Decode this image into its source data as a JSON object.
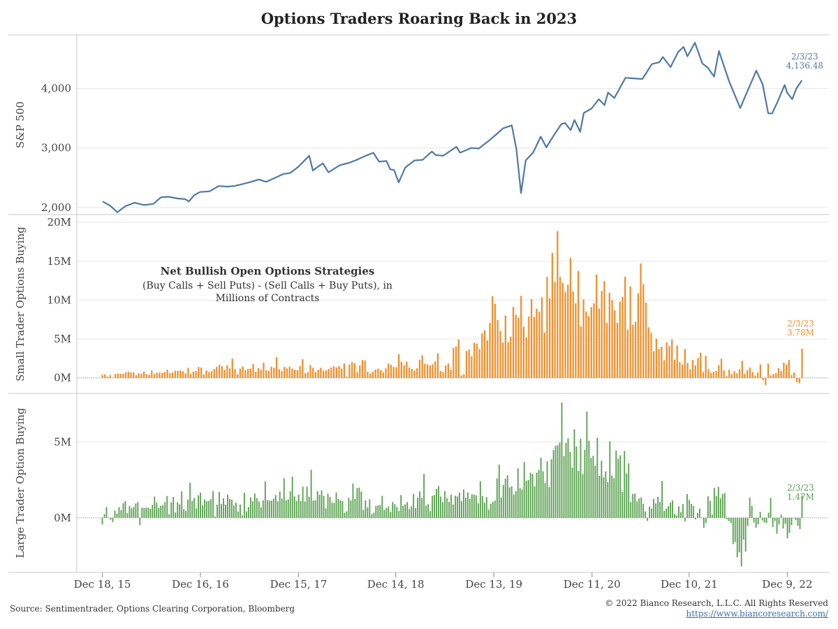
{
  "title": "Options Traders Roaring Back in 2023",
  "footer": {
    "source": "Source: Sentimentrader, Options Clearing Corporation, Bloomberg",
    "copyright": "© 2022 Bianco Research, L.L.C. All Rights Reserved",
    "url": "https://www.biancoresearch.com/"
  },
  "colors": {
    "sp500": "#4e79a7",
    "small": "#f28e2b",
    "large": "#59a14f",
    "grid": "#e6e6e6",
    "frame": "#c8c8c8"
  },
  "chart_data": [
    {
      "type": "line",
      "ylabel": "S&P 500",
      "yticks": [
        2000,
        3000,
        4000
      ],
      "yticklabels": [
        "2,000",
        "3,000",
        "4,000"
      ],
      "ylim": [
        1880,
        4900
      ],
      "end_annotation": {
        "date": "2/3/23",
        "value": "4,136.48"
      },
      "series": [
        {
          "x": [
            "2015-12-18",
            "2016-01-15",
            "2016-02-12",
            "2016-03-11",
            "2016-04-15",
            "2016-05-20",
            "2016-06-24",
            "2016-07-22",
            "2016-08-19",
            "2016-09-23",
            "2016-10-21",
            "2016-11-04",
            "2016-11-25",
            "2016-12-16",
            "2017-01-20",
            "2017-02-24",
            "2017-03-24",
            "2017-04-21",
            "2017-05-19",
            "2017-06-23",
            "2017-07-21",
            "2017-08-18",
            "2017-09-22",
            "2017-10-20",
            "2017-11-17",
            "2017-12-15",
            "2018-01-26",
            "2018-02-09",
            "2018-03-02",
            "2018-03-16",
            "2018-04-06",
            "2018-05-18",
            "2018-06-22",
            "2018-07-20",
            "2018-08-24",
            "2018-09-21",
            "2018-10-12",
            "2018-11-09",
            "2018-11-23",
            "2018-12-07",
            "2018-12-24",
            "2019-01-18",
            "2019-02-22",
            "2019-03-22",
            "2019-04-26",
            "2019-05-10",
            "2019-06-07",
            "2019-07-26",
            "2019-08-09",
            "2019-09-20",
            "2019-10-18",
            "2019-11-22",
            "2019-12-20",
            "2020-01-17",
            "2020-02-19",
            "2020-03-06",
            "2020-03-23",
            "2020-04-10",
            "2020-05-08",
            "2020-06-05",
            "2020-06-26",
            "2020-07-24",
            "2020-08-21",
            "2020-09-04",
            "2020-09-25",
            "2020-10-09",
            "2020-10-30",
            "2020-11-13",
            "2020-12-11",
            "2021-01-08",
            "2021-01-29",
            "2021-02-12",
            "2021-03-05",
            "2021-04-16",
            "2021-05-14",
            "2021-06-18",
            "2021-07-23",
            "2021-08-20",
            "2021-09-03",
            "2021-10-01",
            "2021-10-29",
            "2021-11-19",
            "2021-12-03",
            "2021-12-31",
            "2022-01-28",
            "2022-02-18",
            "2022-03-11",
            "2022-03-29",
            "2022-05-06",
            "2022-06-17",
            "2022-07-08",
            "2022-08-16",
            "2022-09-09",
            "2022-09-30",
            "2022-10-14",
            "2022-11-04",
            "2022-11-30",
            "2022-12-09",
            "2022-12-28",
            "2023-01-13",
            "2023-02-03"
          ],
          "y": [
            2100,
            2030,
            1920,
            2020,
            2080,
            2040,
            2060,
            2170,
            2180,
            2150,
            2140,
            2100,
            2210,
            2260,
            2270,
            2360,
            2350,
            2360,
            2390,
            2430,
            2470,
            2430,
            2500,
            2560,
            2580,
            2680,
            2870,
            2620,
            2700,
            2740,
            2590,
            2710,
            2750,
            2800,
            2870,
            2920,
            2770,
            2780,
            2640,
            2630,
            2420,
            2670,
            2790,
            2800,
            2940,
            2880,
            2870,
            3020,
            2920,
            3000,
            2990,
            3110,
            3220,
            3330,
            3380,
            2970,
            2240,
            2790,
            2930,
            3190,
            3010,
            3220,
            3400,
            3420,
            3300,
            3470,
            3270,
            3590,
            3660,
            3820,
            3720,
            3930,
            3840,
            4180,
            4170,
            4160,
            4410,
            4440,
            4530,
            4360,
            4610,
            4700,
            4540,
            4770,
            4420,
            4350,
            4200,
            4630,
            4120,
            3670,
            3900,
            4300,
            4070,
            3580,
            3580,
            3780,
            4060,
            3930,
            3820,
            4000,
            4136
          ]
        }
      ]
    },
    {
      "type": "bar",
      "ylabel": "Small Trader Options Buying",
      "yticks": [
        0,
        5,
        10,
        15,
        20
      ],
      "yticklabels": [
        "0M",
        "5M",
        "10M",
        "15M",
        "20M"
      ],
      "ylim": [
        -2,
        21
      ],
      "units": "millions of contracts",
      "annotation": {
        "title": "Net Bullish Open Options Strategies",
        "line1": "(Buy Calls + Sell Puts) - (Sell Calls + Buy Puts), in",
        "line2": "Millions of Contracts"
      },
      "end_annotation": {
        "date": "2/3/23",
        "value": "3.78M"
      },
      "shape": [
        [
          2015.96,
          0.3
        ],
        [
          2016.5,
          0.5
        ],
        [
          2017.0,
          0.7
        ],
        [
          2017.5,
          0.9
        ],
        [
          2018.0,
          1.1
        ],
        [
          2018.5,
          1.0
        ],
        [
          2019.0,
          1.4
        ],
        [
          2019.5,
          1.6
        ],
        [
          2019.8,
          3.5
        ],
        [
          2019.95,
          0.3
        ],
        [
          2020.0,
          3.5
        ],
        [
          2020.5,
          7.0
        ],
        [
          2020.9,
          10.5
        ],
        [
          2021.1,
          12.0
        ],
        [
          2021.5,
          9.5
        ],
        [
          2021.9,
          10.0
        ],
        [
          2022.0,
          5.0
        ],
        [
          2022.5,
          1.5
        ],
        [
          2023.1,
          0.5
        ]
      ],
      "values": [
        0.38,
        0.47,
        0.17,
        0.38,
        0.04,
        0.5,
        0.57,
        0.52,
        0.55,
        0.71,
        0.81,
        0.71,
        0.72,
        0.36,
        0.62,
        0.54,
        0.8,
        0.47,
        0.41,
        0.94,
        0.48,
        0.67,
        0.69,
        0.65,
        0.77,
        1.07,
        0.59,
        0.72,
        0.92,
        0.91,
        0.96,
        0.86,
        0.59,
        1.29,
        0.5,
        0.79,
        0.88,
        1.41,
        1.33,
        0.46,
        0.97,
        0.74,
        0.87,
        1.14,
        1.43,
        1.69,
        1.51,
        1.02,
        1.6,
        1.22,
        2.49,
        1.14,
        0.48,
        1.2,
        1.47,
        0.99,
        1.17,
        1.19,
        1.78,
        0.78,
        1.26,
        1.05,
        1.94,
        1.0,
        0.88,
        1.45,
        1.29,
        2.67,
        1.12,
        0.88,
        1.4,
        1.22,
        1.44,
        1.21,
        1.04,
        1.01,
        1.52,
        2.41,
        0.61,
        0.75,
        1.66,
        1.31,
        0.76,
        1.05,
        1.3,
        0.93,
        0.96,
        1.15,
        1.34,
        1.49,
        1.36,
        1.54,
        1.21,
        1.86,
        0.17,
        1.73,
        2.03,
        1.89,
        0.76,
        1.61,
        2.3,
        2.22,
        0.8,
        0.56,
        0.81,
        1.07,
        1.2,
        1.02,
        0.73,
        1.23,
        1.85,
        1.69,
        1.39,
        1.38,
        3.05,
        2.07,
        1.61,
        2.11,
        1.34,
        1.17,
        0.95,
        1.25,
        2.34,
        2.91,
        1.82,
        1.73,
        1.59,
        1.76,
        2.15,
        3.15,
        0.89,
        0.76,
        1.6,
        1.85,
        1.05,
        3.87,
        4.03,
        4.93,
        0.32,
        0.46,
        3.46,
        3.63,
        2.79,
        4.53,
        4.42,
        3.73,
        5.71,
        6.12,
        4.85,
        7.09,
        10.5,
        9.54,
        7.46,
        6.05,
        4.55,
        8.03,
        4.58,
        5.3,
        9.14,
        8.11,
        7.75,
        10.55,
        6.58,
        5.22,
        7.91,
        10.12,
        7.85,
        8.89,
        8.52,
        10.37,
        5.84,
        12.99,
        10.23,
        16.08,
        12.32,
        18.89,
        13.0,
        12.24,
        11.08,
        11.99,
        15.42,
        11.11,
        9.59,
        13.75,
        6.64,
        10.1,
        8.54,
        7.94,
        9.11,
        9.58,
        13.31,
        8.91,
        11.18,
        12.45,
        7.06,
        10.95,
        9.98,
        8.7,
        7.08,
        9.8,
        10.42,
        13.02,
        6.21,
        11.76,
        6.81,
        7.21,
        10.86,
        14.72,
        12.06,
        9.68,
        6.5,
        5.79,
        3.44,
        5.04,
        3.73,
        4.01,
        2.28,
        4.57,
        4.1,
        4.94,
        2.33,
        4.15,
        2.02,
        1.71,
        3.72,
        1.93,
        1.1,
        2.32,
        1.59,
        2.56,
        3.23,
        0.75,
        2.84,
        1.12,
        0.66,
        0.78,
        0.9,
        1.64,
        2.47,
        0.98,
        0.21,
        1.05,
        0.51,
        0.87,
        0.59,
        1.12,
        2.19,
        0.52,
        0.99,
        1.34,
        0.76,
        0.31,
        0.68,
        1.73,
        -0.3,
        -0.91,
        1.84,
        0.32,
        0.51,
        0.63,
        1.25,
        0.9,
        1.95,
        1.74,
        2.31,
        0.38,
        0.71,
        -0.55,
        -0.7,
        3.78
      ]
    },
    {
      "type": "bar",
      "ylabel": "Large Trader Option Buying",
      "yticks": [
        0,
        5
      ],
      "yticklabels": [
        "0M",
        "5M"
      ],
      "ylim": [
        -3.6,
        8.2
      ],
      "units": "millions of contracts",
      "end_annotation": {
        "date": "2/3/23",
        "value": "1.47M"
      },
      "shape": [
        [
          2015.96,
          -0.3
        ],
        [
          2016.2,
          0.5
        ],
        [
          2016.5,
          0.8
        ],
        [
          2017.0,
          1.1
        ],
        [
          2017.5,
          1.5
        ],
        [
          2017.8,
          1.8
        ],
        [
          2018.0,
          1.3
        ],
        [
          2018.5,
          0.2
        ],
        [
          2018.7,
          1.0
        ],
        [
          2019.0,
          0.5
        ],
        [
          2019.5,
          1.0
        ],
        [
          2019.9,
          1.8
        ],
        [
          2019.95,
          0.3
        ],
        [
          2020.0,
          1.5
        ],
        [
          2020.5,
          3.0
        ],
        [
          2020.8,
          3.8
        ],
        [
          2021.2,
          4.0
        ],
        [
          2021.7,
          3.2
        ],
        [
          2022.0,
          2.0
        ],
        [
          2022.5,
          0.0
        ],
        [
          2022.8,
          -0.5
        ],
        [
          2023.1,
          0.5
        ]
      ],
      "values": [
        -0.44,
        0.24,
        0.7,
        -0.01,
        -0.12,
        -0.29,
        0.48,
        0.28,
        0.7,
        0.5,
        0.96,
        1.1,
        0.3,
        0.78,
        0.63,
        0.71,
        0.94,
        1.04,
        -0.48,
        0.67,
        0.66,
        0.67,
        0.66,
        0.6,
        0.85,
        1.4,
        1.0,
        0.66,
        0.79,
        0.83,
        1.04,
        1.44,
        0.24,
        1.02,
        1.38,
        0.35,
        1.03,
        0.89,
        1.74,
        0.57,
        0.46,
        1.21,
        2.31,
        1.11,
        1.31,
        0.63,
        1.49,
        1.66,
        0.82,
        1.21,
        1.09,
        1.11,
        1.23,
        1.76,
        0.09,
        0.88,
        1.71,
        0.91,
        1.28,
        0.88,
        1.52,
        1.24,
        1.2,
        0.81,
        1.0,
        0.42,
        0.88,
        0.16,
        1.66,
        0.43,
        0.71,
        1.35,
        1.09,
        1.6,
        1.3,
        1.08,
        0.69,
        1.16,
        2.4,
        1.17,
        1.15,
        1.13,
        1.26,
        1.5,
        1.09,
        1.73,
        1.27,
        2.61,
        1.16,
        1.21,
        1.75,
        2.72,
        1.42,
        1.12,
        1.53,
        1.12,
        2.05,
        1.08,
        2.05,
        1.38,
        3.17,
        1.15,
        1.16,
        1.75,
        1.52,
        1.81,
        1.45,
        0.63,
        1.59,
        1.37,
        1.0,
        0.98,
        1.67,
        1.25,
        1.15,
        1.1,
        0.32,
        0.43,
        1.31,
        1.14,
        2.26,
        1.25,
        1.96,
        1.99,
        1.73,
        0.52,
        1.15,
        0.68,
        1.22,
        0.24,
        0.34,
        0.79,
        0.82,
        0.84,
        1.45,
        0.52,
        0.65,
        0.75,
        0.39,
        1.04,
        0.9,
        0.71,
        0.45,
        1.5,
        0.79,
        0.89,
        1.04,
        0.57,
        0.75,
        1.58,
        0.64,
        1.33,
        1.74,
        1.32,
        2.9,
        0.81,
        0.9,
        0.44,
        1.45,
        1.5,
        1.9,
        2.09,
        1.4,
        1.04,
        1.76,
        1.29,
        1.05,
        1.53,
        0.89,
        1.45,
        1.41,
        1.67,
        1.1,
        1.87,
        1.32,
        1.67,
        1.24,
        1.55,
        1.53,
        1.48,
        0.95,
        2.41,
        1.44,
        1.0,
        1.36,
        0.55,
        0.92,
        1.05,
        1.14,
        2.6,
        3.51,
        1.33,
        2.16,
        2.58,
        2.81,
        2.01,
        2.08,
        1.53,
        1.76,
        3.26,
        1.95,
        1.86,
        3.68,
        2.43,
        2.49,
        2.97,
        2.89,
        2.08,
        2.98,
        3.16,
        3.96,
        3.07,
        2.29,
        3.73,
        2.03,
        3.86,
        4.46,
        4.74,
        4.79,
        4.96,
        7.61,
        4.08,
        4.94,
        5.24,
        4.35,
        3.31,
        5.84,
        4.7,
        3.09,
        5.21,
        2.88,
        4.48,
        7.01,
        5.09,
        3.95,
        4.09,
        3.43,
        5.28,
        2.77,
        3.76,
        2.68,
        3.06,
        2.36,
        5.05,
        2.79,
        2.61,
        4.44,
        3.9,
        4.12,
        1.71,
        4.41,
        2.92,
        3.59,
        1.03,
        1.57,
        1.6,
        1.09,
        1.27,
        1.35,
        0.93,
        0.42,
        -0.2,
        0.74,
        0.61,
        1.25,
        0.95,
        1.39,
        1.05,
        2.43,
        0.45,
        0.6,
        0.76,
        1.01,
        1.15,
        0.26,
        0.16,
        0.76,
        0.37,
        0.91,
        -0.23,
        1.56,
        1.18,
        0.92,
        0.77,
        -0.1,
        0.32,
        0.61,
        -0.01,
        -0.65,
        -0.35,
        1.42,
        1.12,
        0.21,
        1.97,
        1.44,
        2.04,
        1.28,
        1.58,
        1.64,
        -0.1,
        -0.22,
        -0.34,
        -1.73,
        -1.6,
        -2.61,
        -2.28,
        -3.21,
        -1.44,
        -2.23,
        -0.53,
        1.33,
        0.79,
        -0.3,
        -0.66,
        -0.43,
        0.39,
        -0.17,
        -0.31,
        -0.34,
        0.34,
        1.31,
        -0.61,
        -0.21,
        -1.05,
        -0.44,
        0.21,
        -0.71,
        -0.39,
        -1.35,
        -0.99,
        -0.49,
        -0.04,
        -0.15,
        -0.53,
        -0.75,
        1.47
      ]
    }
  ],
  "xaxis": {
    "ticks": [
      "Dec 18, 15",
      "Dec 16, 16",
      "Dec 15, 17",
      "Dec 14, 18",
      "Dec 13, 19",
      "Dec 11, 20",
      "Dec 10, 21",
      "Dec 9, 22"
    ],
    "tick_dates": [
      2015.96,
      2016.96,
      2017.96,
      2018.95,
      2019.95,
      2020.95,
      2021.94,
      2022.94
    ],
    "range": [
      2015.7,
      2023.35
    ]
  }
}
